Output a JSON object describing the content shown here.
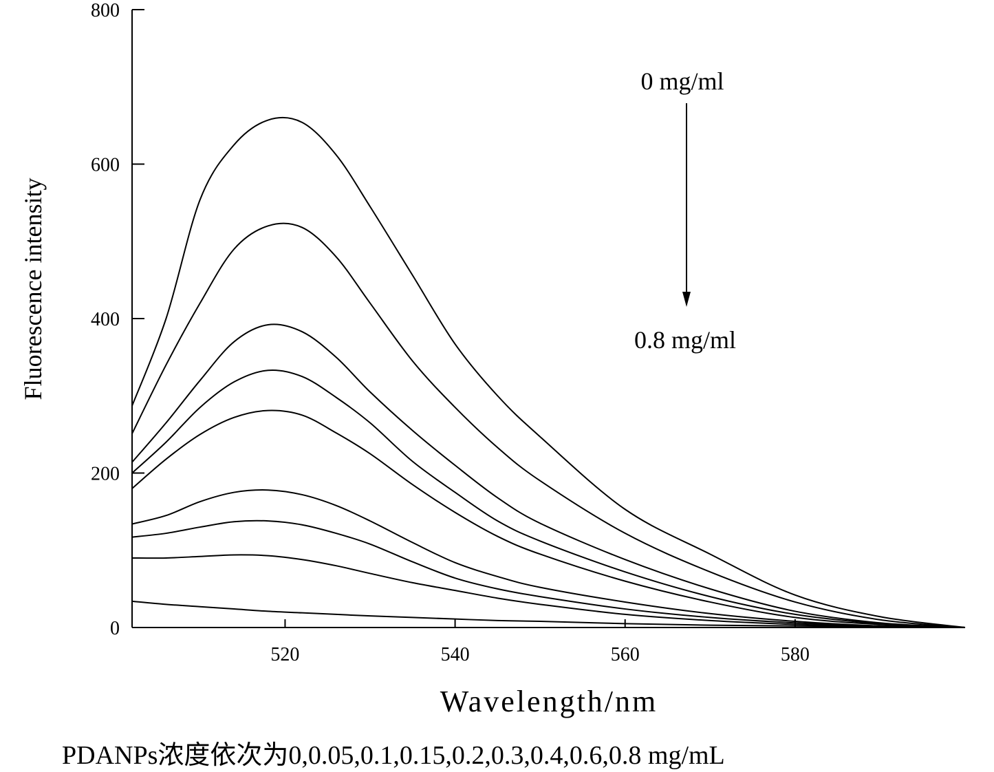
{
  "chart_data": {
    "type": "line",
    "title": "",
    "xlabel": "Wavelength/nm",
    "ylabel": "Fluorescence intensity",
    "xlim": [
      502,
      600
    ],
    "ylim": [
      0,
      800
    ],
    "xticks": [
      520,
      540,
      560,
      580
    ],
    "yticks": [
      0,
      200,
      400,
      600,
      800
    ],
    "grid": false,
    "x": [
      502,
      506,
      510,
      514,
      518,
      522,
      526,
      530,
      535,
      540,
      545,
      550,
      560,
      570,
      580,
      590,
      600
    ],
    "series": [
      {
        "name": "0 mg/mL",
        "values": [
          287,
          400,
          554,
          625,
          657,
          654,
          612,
          545,
          456,
          367,
          300,
          247,
          153,
          95,
          42,
          14,
          0
        ]
      },
      {
        "name": "0.05 mg/mL",
        "values": [
          251,
          340,
          420,
          490,
          520,
          518,
          480,
          420,
          345,
          285,
          233,
          190,
          122,
          72,
          33,
          10,
          0
        ]
      },
      {
        "name": "0.1 mg/mL",
        "values": [
          214,
          265,
          320,
          370,
          392,
          383,
          350,
          305,
          255,
          210,
          168,
          135,
          88,
          50,
          21,
          6,
          0
        ]
      },
      {
        "name": "0.15 mg/mL",
        "values": [
          200,
          240,
          285,
          318,
          333,
          325,
          298,
          265,
          215,
          175,
          138,
          112,
          72,
          40,
          17,
          5,
          0
        ]
      },
      {
        "name": "0.2 mg/mL",
        "values": [
          180,
          218,
          250,
          272,
          281,
          275,
          252,
          225,
          185,
          149,
          118,
          95,
          60,
          33,
          13,
          4,
          0
        ]
      },
      {
        "name": "0.3 mg/mL",
        "values": [
          134,
          145,
          163,
          175,
          178,
          172,
          158,
          138,
          110,
          84,
          66,
          52,
          33,
          18,
          8,
          2,
          0
        ]
      },
      {
        "name": "0.4 mg/mL",
        "values": [
          117,
          122,
          130,
          137,
          138,
          133,
          122,
          108,
          85,
          64,
          50,
          40,
          24,
          13,
          6,
          2,
          0
        ]
      },
      {
        "name": "0.6 mg/mL",
        "values": [
          90,
          90,
          92,
          94,
          93,
          88,
          80,
          70,
          58,
          48,
          38,
          30,
          17,
          9,
          4,
          1,
          0
        ]
      },
      {
        "name": "0.8 mg/mL",
        "values": [
          34,
          30,
          27,
          24,
          21,
          19,
          17,
          15,
          13,
          11,
          9,
          8,
          5,
          3,
          2,
          1,
          0
        ]
      }
    ],
    "annotations": {
      "top": "0 mg/ml",
      "bottom": "0.8 mg/ml"
    },
    "caption": "PDANPs浓度依次为0,0.05,0.1,0.15,0.2,0.3,0.4,0.6,0.8 mg/mL",
    "line_color": "#000000"
  }
}
